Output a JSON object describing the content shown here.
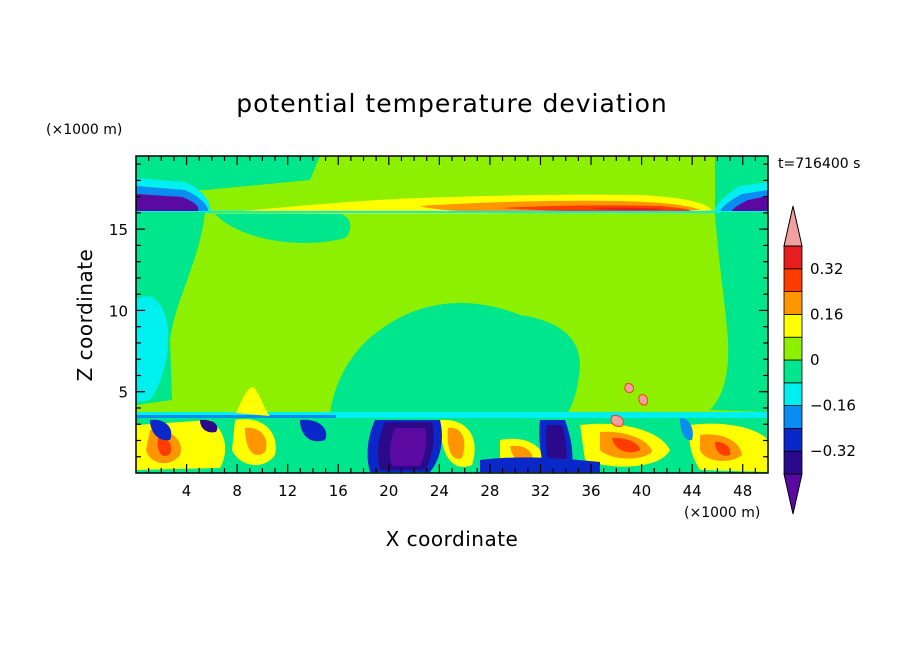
{
  "chart_data": {
    "type": "heatmap",
    "title": "potential temperature deviation",
    "xlabel": "X coordinate",
    "ylabel": "Z coordinate",
    "x_unit": "(×1000 m)",
    "y_unit": "(×1000 m)",
    "time_label": "t=716400 s",
    "xlim": [
      0,
      50
    ],
    "ylim": [
      0,
      19.5
    ],
    "x_ticks": [
      4,
      8,
      12,
      16,
      20,
      24,
      28,
      32,
      36,
      40,
      44,
      48
    ],
    "y_ticks": [
      5,
      10,
      15
    ],
    "colorbar": {
      "levels": [
        -0.4,
        -0.32,
        -0.24,
        -0.16,
        -0.08,
        0,
        0.08,
        0.16,
        0.24,
        0.32,
        0.4
      ],
      "tick_labels": [
        "0.32",
        "0.16",
        "0",
        "−0.16",
        "−0.32"
      ],
      "tick_values": [
        0.32,
        0.16,
        0,
        -0.16,
        -0.32
      ],
      "colors": [
        "#5a0aa0",
        "#2a0a8a",
        "#0a28c8",
        "#0a8cf0",
        "#00f0f0",
        "#00e68c",
        "#8cf000",
        "#ffff00",
        "#ff9600",
        "#ff3c00",
        "#e61e1e",
        "#f0a0a0"
      ]
    },
    "features": {
      "background_level": "0",
      "top_lobes": {
        "z_range": [
          16.5,
          17.7
        ],
        "min_value": "−0.32",
        "x_ranges": [
          [
            0,
            6
          ],
          [
            46,
            50
          ]
        ]
      },
      "upper_warm_band": {
        "z_range": [
          16.2,
          17.2
        ],
        "x_range": [
          18,
          45
        ],
        "max_value": "0.32"
      },
      "inner_cool_dome": {
        "z_range": [
          3,
          8.5
        ],
        "x_range": [
          18,
          35
        ],
        "value": "−0.08"
      },
      "boundary_layer": {
        "z_range": [
          0,
          3.4
        ],
        "description_levels": [
          "−0.32",
          "0.32"
        ]
      }
    }
  }
}
